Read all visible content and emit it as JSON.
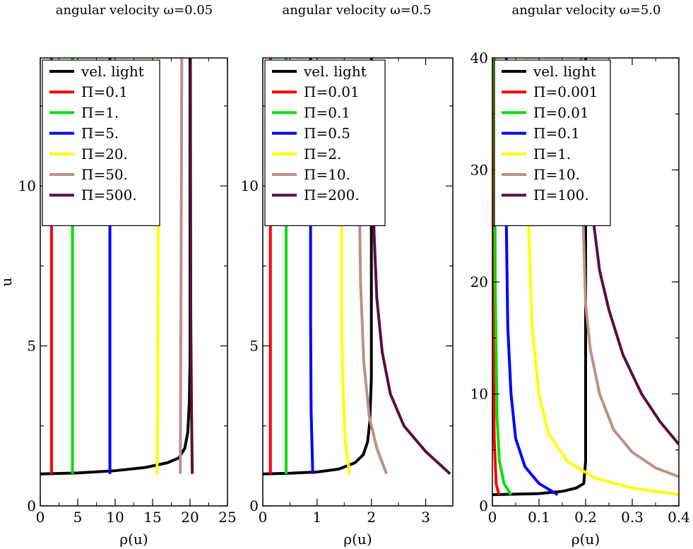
{
  "chart_data": [
    {
      "type": "line",
      "title": "angular velocity ω=0.05",
      "xlabel": "ρ(u)",
      "ylabel": "u",
      "xlim": [
        0,
        25
      ],
      "ylim": [
        0,
        14
      ],
      "xticks": [
        0,
        5,
        10,
        15,
        20,
        25
      ],
      "yticks": [
        0,
        5,
        10
      ],
      "series": [
        {
          "name": "vel. light",
          "color": "#000000",
          "points": [
            [
              0,
              1
            ],
            [
              5,
              1.03
            ],
            [
              10,
              1.1
            ],
            [
              14,
              1.2
            ],
            [
              17,
              1.35
            ],
            [
              18.5,
              1.5
            ],
            [
              19.3,
              1.8
            ],
            [
              19.7,
              2.3
            ],
            [
              19.9,
              3.2
            ],
            [
              20,
              4.5
            ],
            [
              20,
              14
            ]
          ]
        },
        {
          "name": "Π=0.1",
          "color": "#ff0000",
          "points": [
            [
              1.5,
              1
            ],
            [
              1.5,
              14
            ]
          ]
        },
        {
          "name": "Π=1.",
          "color": "#00e000",
          "points": [
            [
              4.3,
              1
            ],
            [
              4.3,
              14
            ]
          ]
        },
        {
          "name": "Π=5.",
          "color": "#0000ff",
          "points": [
            [
              9.3,
              1
            ],
            [
              9.3,
              14
            ]
          ]
        },
        {
          "name": "Π=20.",
          "color": "#ffff00",
          "points": [
            [
              15.6,
              1
            ],
            [
              15.7,
              4
            ],
            [
              15.8,
              14
            ]
          ]
        },
        {
          "name": "Π=50.",
          "color": "#bc8f8f",
          "points": [
            [
              18.7,
              1
            ],
            [
              18.75,
              4
            ],
            [
              18.9,
              14
            ]
          ]
        },
        {
          "name": "Π=500.",
          "color": "#5a0f3a",
          "points": [
            [
              20.3,
              1
            ],
            [
              20.2,
              3
            ],
            [
              20.1,
              6
            ],
            [
              20.05,
              14
            ]
          ]
        }
      ]
    },
    {
      "type": "line",
      "title": "angular velocity ω=0.5",
      "xlabel": "ρ(u)",
      "ylabel": "",
      "xlim": [
        0,
        3.5
      ],
      "ylim": [
        0,
        14
      ],
      "xticks": [
        0,
        1,
        2,
        3
      ],
      "yticks": [
        0,
        5,
        10
      ],
      "series": [
        {
          "name": "vel. light",
          "color": "#000000",
          "points": [
            [
              0,
              1
            ],
            [
              0.5,
              1.02
            ],
            [
              1,
              1.06
            ],
            [
              1.4,
              1.15
            ],
            [
              1.7,
              1.35
            ],
            [
              1.85,
              1.6
            ],
            [
              1.93,
              2.0
            ],
            [
              1.97,
              2.6
            ],
            [
              2,
              4
            ],
            [
              2,
              14
            ]
          ]
        },
        {
          "name": "Π=0.01",
          "color": "#ff0000",
          "points": [
            [
              0.14,
              1
            ],
            [
              0.14,
              14
            ]
          ]
        },
        {
          "name": "Π=0.1",
          "color": "#00e000",
          "points": [
            [
              0.43,
              1
            ],
            [
              0.43,
              14
            ]
          ]
        },
        {
          "name": "Π=0.5",
          "color": "#0000ff",
          "points": [
            [
              0.92,
              1
            ],
            [
              0.89,
              3
            ],
            [
              0.88,
              6
            ],
            [
              0.88,
              14
            ]
          ]
        },
        {
          "name": "Π=2.",
          "color": "#ffff00",
          "points": [
            [
              1.6,
              1
            ],
            [
              1.52,
              2
            ],
            [
              1.48,
              3.5
            ],
            [
              1.45,
              6
            ],
            [
              1.45,
              9
            ]
          ]
        },
        {
          "name": "Π=10.",
          "color": "#bc8f8f",
          "points": [
            [
              2.28,
              1
            ],
            [
              2.1,
              1.8
            ],
            [
              1.96,
              2.8
            ],
            [
              1.86,
              4.5
            ],
            [
              1.8,
              7
            ],
            [
              1.78,
              9.5
            ]
          ]
        },
        {
          "name": "Π=200.",
          "color": "#5a0f3a",
          "points": [
            [
              3.45,
              1
            ],
            [
              3.0,
              1.7
            ],
            [
              2.6,
              2.5
            ],
            [
              2.35,
              3.5
            ],
            [
              2.2,
              4.8
            ],
            [
              2.1,
              6.5
            ],
            [
              2.05,
              8.5
            ],
            [
              2.02,
              10.5
            ]
          ]
        }
      ]
    },
    {
      "type": "line",
      "title": "angular velocity ω=5.0",
      "xlabel": "ρ(u)",
      "ylabel": "",
      "xlim": [
        0,
        0.4
      ],
      "ylim": [
        0,
        40
      ],
      "xticks": [
        0,
        0.1,
        0.2,
        0.3,
        0.4
      ],
      "yticks": [
        0,
        10,
        20,
        30,
        40
      ],
      "series": [
        {
          "name": "vel. light",
          "color": "#000000",
          "points": [
            [
              0,
              1
            ],
            [
              0.05,
              1.05
            ],
            [
              0.1,
              1.1
            ],
            [
              0.15,
              1.3
            ],
            [
              0.18,
              1.6
            ],
            [
              0.196,
              2.0
            ],
            [
              0.2,
              4
            ],
            [
              0.2,
              40
            ]
          ]
        },
        {
          "name": "Π=0.001",
          "color": "#ff0000",
          "points": [
            [
              0.014,
              1
            ],
            [
              0.008,
              2
            ],
            [
              0.004,
              6
            ],
            [
              0.002,
              15
            ],
            [
              0.001,
              40
            ]
          ]
        },
        {
          "name": "Π=0.01",
          "color": "#00e000",
          "points": [
            [
              0.04,
              1
            ],
            [
              0.025,
              2
            ],
            [
              0.015,
              4
            ],
            [
              0.01,
              8
            ],
            [
              0.006,
              20
            ],
            [
              0.005,
              40
            ]
          ]
        },
        {
          "name": "Π=0.1",
          "color": "#0000ff",
          "points": [
            [
              0.14,
              1
            ],
            [
              0.1,
              2
            ],
            [
              0.07,
              3.5
            ],
            [
              0.05,
              6
            ],
            [
              0.04,
              10
            ],
            [
              0.033,
              16
            ],
            [
              0.03,
              25
            ],
            [
              0.03,
              40
            ]
          ]
        },
        {
          "name": "Π=1.",
          "color": "#ffff00",
          "points": [
            [
              0.4,
              1
            ],
            [
              0.3,
              1.6
            ],
            [
              0.22,
              2.5
            ],
            [
              0.16,
              4
            ],
            [
              0.12,
              6.5
            ],
            [
              0.1,
              10
            ],
            [
              0.085,
              16
            ],
            [
              0.078,
              25
            ],
            [
              0.075,
              40
            ]
          ]
        },
        {
          "name": "Π=10.",
          "color": "#bc8f8f",
          "points": [
            [
              0.4,
              2.6
            ],
            [
              0.35,
              3.4
            ],
            [
              0.3,
              4.8
            ],
            [
              0.26,
              6.8
            ],
            [
              0.23,
              10
            ],
            [
              0.21,
              14
            ],
            [
              0.2,
              18
            ],
            [
              0.195,
              25
            ],
            [
              0.19,
              40
            ]
          ]
        },
        {
          "name": "Π=100.",
          "color": "#5a0f3a",
          "points": [
            [
              0.4,
              5.5
            ],
            [
              0.36,
              7.5
            ],
            [
              0.32,
              10
            ],
            [
              0.28,
              13.5
            ],
            [
              0.25,
              17.5
            ],
            [
              0.23,
              21
            ],
            [
              0.215,
              26
            ],
            [
              0.205,
              33
            ],
            [
              0.2,
              40
            ]
          ]
        }
      ]
    }
  ]
}
